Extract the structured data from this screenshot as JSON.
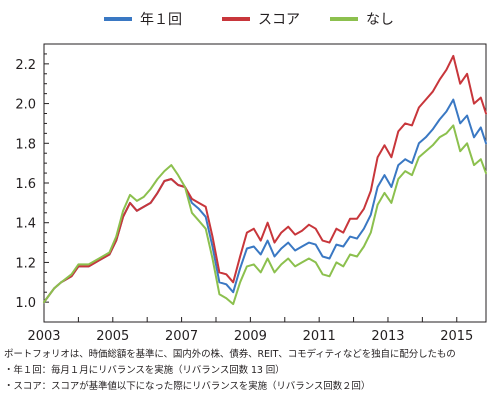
{
  "chart_data": {
    "type": "line",
    "title": "",
    "xlabel": "",
    "ylabel": "",
    "xlim": [
      2003.0,
      2015.85
    ],
    "ylim": [
      0.9,
      2.3
    ],
    "y_ticks": [
      "1.0",
      "1.2",
      "1.4",
      "1.6",
      "1.8",
      "2.0",
      "2.2"
    ],
    "y_tick_values": [
      1.0,
      1.2,
      1.4,
      1.6,
      1.8,
      2.0,
      2.2
    ],
    "x_ticks": [
      "2003",
      "2005",
      "2007",
      "2009",
      "2011",
      "2013",
      "2015"
    ],
    "x_tick_values": [
      2003,
      2005,
      2007,
      2009,
      2011,
      2013,
      2015
    ],
    "grid": false,
    "legend_position": "top",
    "series": [
      {
        "name": "年１回",
        "color": "#3a78c3",
        "x": [
          2003.0,
          2003.3,
          2003.5,
          2003.8,
          2004.0,
          2004.3,
          2004.6,
          2004.9,
          2005.1,
          2005.3,
          2005.5,
          2005.7,
          2005.9,
          2006.1,
          2006.3,
          2006.5,
          2006.7,
          2006.9,
          2007.1,
          2007.3,
          2007.5,
          2007.7,
          2007.9,
          2008.1,
          2008.3,
          2008.5,
          2008.7,
          2008.9,
          2009.1,
          2009.3,
          2009.5,
          2009.7,
          2009.9,
          2010.1,
          2010.3,
          2010.5,
          2010.7,
          2010.9,
          2011.1,
          2011.3,
          2011.5,
          2011.7,
          2011.9,
          2012.1,
          2012.3,
          2012.5,
          2012.7,
          2012.9,
          2013.1,
          2013.3,
          2013.5,
          2013.7,
          2013.9,
          2014.1,
          2014.3,
          2014.5,
          2014.7,
          2014.9,
          2015.1,
          2015.3,
          2015.5,
          2015.7,
          2015.85
        ],
        "y": [
          1.0,
          1.07,
          1.1,
          1.13,
          1.18,
          1.18,
          1.21,
          1.24,
          1.31,
          1.43,
          1.5,
          1.46,
          1.48,
          1.5,
          1.55,
          1.61,
          1.62,
          1.59,
          1.58,
          1.5,
          1.47,
          1.43,
          1.28,
          1.1,
          1.09,
          1.05,
          1.17,
          1.27,
          1.28,
          1.24,
          1.31,
          1.23,
          1.27,
          1.3,
          1.26,
          1.28,
          1.3,
          1.29,
          1.23,
          1.22,
          1.29,
          1.28,
          1.33,
          1.32,
          1.37,
          1.44,
          1.58,
          1.64,
          1.58,
          1.69,
          1.72,
          1.7,
          1.8,
          1.83,
          1.87,
          1.92,
          1.96,
          2.02,
          1.9,
          1.94,
          1.83,
          1.88,
          1.8
        ]
      },
      {
        "name": "スコア",
        "color": "#c8363b",
        "x": [
          2003.0,
          2003.3,
          2003.5,
          2003.8,
          2004.0,
          2004.3,
          2004.6,
          2004.9,
          2005.1,
          2005.3,
          2005.5,
          2005.7,
          2005.9,
          2006.1,
          2006.3,
          2006.5,
          2006.7,
          2006.9,
          2007.1,
          2007.3,
          2007.5,
          2007.7,
          2007.9,
          2008.1,
          2008.3,
          2008.5,
          2008.7,
          2008.9,
          2009.1,
          2009.3,
          2009.5,
          2009.7,
          2009.9,
          2010.1,
          2010.3,
          2010.5,
          2010.7,
          2010.9,
          2011.1,
          2011.3,
          2011.5,
          2011.7,
          2011.9,
          2012.1,
          2012.3,
          2012.5,
          2012.7,
          2012.9,
          2013.1,
          2013.3,
          2013.5,
          2013.7,
          2013.9,
          2014.1,
          2014.3,
          2014.5,
          2014.7,
          2014.9,
          2015.1,
          2015.3,
          2015.5,
          2015.7,
          2015.85
        ],
        "y": [
          1.0,
          1.07,
          1.1,
          1.13,
          1.18,
          1.18,
          1.21,
          1.24,
          1.31,
          1.43,
          1.5,
          1.46,
          1.48,
          1.5,
          1.55,
          1.61,
          1.62,
          1.59,
          1.58,
          1.52,
          1.5,
          1.48,
          1.33,
          1.15,
          1.14,
          1.1,
          1.23,
          1.35,
          1.37,
          1.31,
          1.4,
          1.3,
          1.35,
          1.38,
          1.34,
          1.36,
          1.39,
          1.37,
          1.31,
          1.3,
          1.37,
          1.35,
          1.42,
          1.42,
          1.47,
          1.56,
          1.73,
          1.79,
          1.73,
          1.86,
          1.9,
          1.89,
          1.98,
          2.02,
          2.06,
          2.12,
          2.17,
          2.24,
          2.1,
          2.15,
          2.0,
          2.03,
          1.95
        ]
      },
      {
        "name": "なし",
        "color": "#8cc04e",
        "x": [
          2003.0,
          2003.3,
          2003.5,
          2003.8,
          2004.0,
          2004.3,
          2004.6,
          2004.9,
          2005.1,
          2005.3,
          2005.5,
          2005.7,
          2005.9,
          2006.1,
          2006.3,
          2006.5,
          2006.7,
          2006.9,
          2007.1,
          2007.3,
          2007.5,
          2007.7,
          2007.9,
          2008.1,
          2008.3,
          2008.5,
          2008.7,
          2008.9,
          2009.1,
          2009.3,
          2009.5,
          2009.7,
          2009.9,
          2010.1,
          2010.3,
          2010.5,
          2010.7,
          2010.9,
          2011.1,
          2011.3,
          2011.5,
          2011.7,
          2011.9,
          2012.1,
          2012.3,
          2012.5,
          2012.7,
          2012.9,
          2013.1,
          2013.3,
          2013.5,
          2013.7,
          2013.9,
          2014.1,
          2014.3,
          2014.5,
          2014.7,
          2014.9,
          2015.1,
          2015.3,
          2015.5,
          2015.7,
          2015.85
        ],
        "y": [
          1.0,
          1.07,
          1.1,
          1.14,
          1.19,
          1.19,
          1.22,
          1.25,
          1.33,
          1.46,
          1.54,
          1.51,
          1.53,
          1.57,
          1.62,
          1.66,
          1.69,
          1.64,
          1.58,
          1.45,
          1.41,
          1.37,
          1.22,
          1.04,
          1.02,
          0.99,
          1.1,
          1.18,
          1.19,
          1.15,
          1.22,
          1.15,
          1.19,
          1.22,
          1.18,
          1.2,
          1.22,
          1.2,
          1.14,
          1.13,
          1.2,
          1.18,
          1.24,
          1.23,
          1.28,
          1.35,
          1.49,
          1.55,
          1.5,
          1.62,
          1.66,
          1.64,
          1.73,
          1.76,
          1.79,
          1.83,
          1.85,
          1.89,
          1.76,
          1.8,
          1.69,
          1.72,
          1.65
        ]
      }
    ]
  },
  "notes": [
    "ポートフォリオは、時価総額を基準に、国内外の株、債券、REIT、コモディティなどを独自に配分したもの",
    "・年１回：毎月１月にリバランスを実施（リバランス回数 13 回）",
    "・スコア：スコアが基準値以下になった際にリバランスを実施（リバランス回数２回）"
  ]
}
